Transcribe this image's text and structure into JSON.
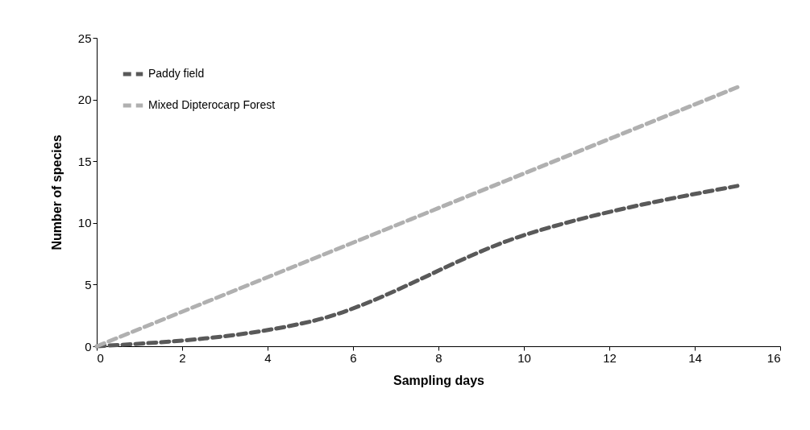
{
  "chart_data": {
    "type": "line",
    "xlabel": "Sampling days",
    "ylabel": "Number of species",
    "x": [
      0,
      5,
      10,
      15
    ],
    "series": [
      {
        "name": "Paddy field",
        "color": "#595959",
        "values": [
          0,
          2,
          9,
          13
        ]
      },
      {
        "name": "Mixed Dipterocarp Forest",
        "color": "#b0b0b0",
        "values": [
          0,
          7,
          14,
          21
        ]
      }
    ],
    "xlim": [
      0,
      16
    ],
    "xticks": [
      0,
      2,
      4,
      6,
      8,
      10,
      12,
      14,
      16
    ],
    "ylim": [
      0,
      25
    ],
    "yticks": [
      0,
      5,
      10,
      15,
      20,
      25
    ],
    "grid": false,
    "legend": "top left",
    "marker": "none",
    "line_style": "dashed"
  }
}
